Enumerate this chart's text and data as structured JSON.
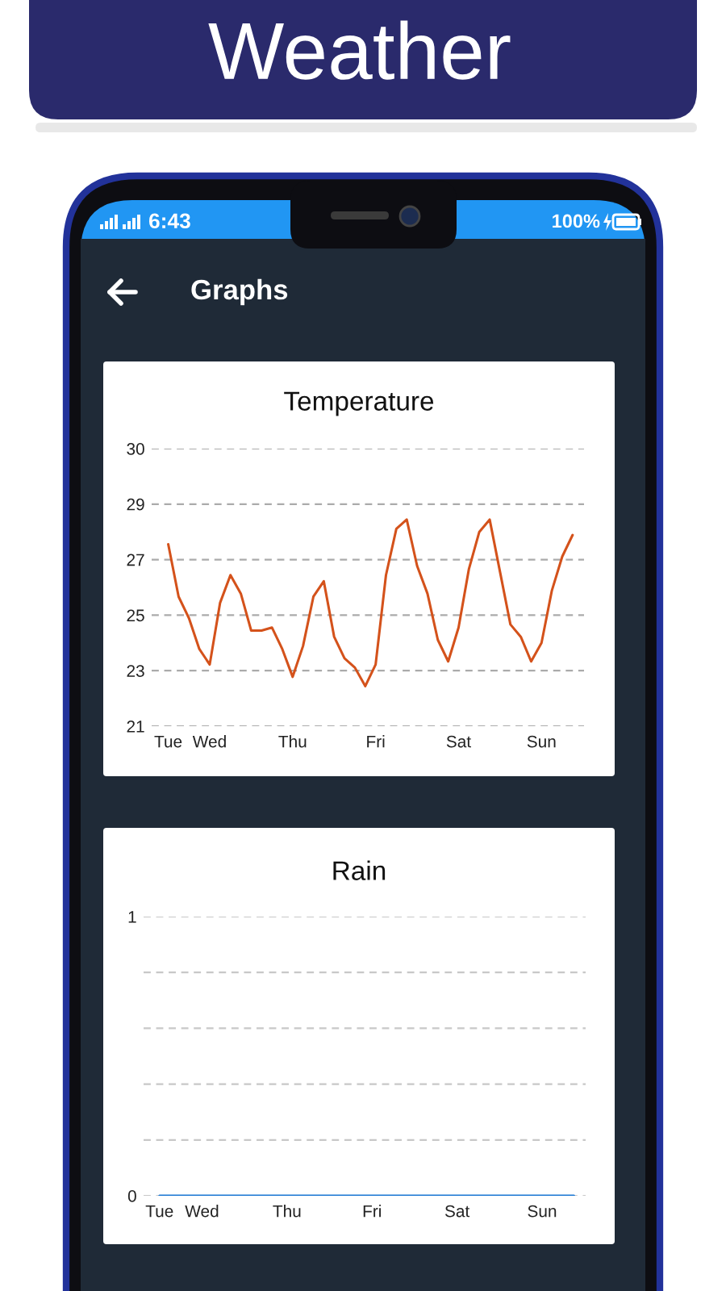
{
  "chart_data": [
    {
      "type": "line",
      "title": "Temperature",
      "annotations": [
        "Weather",
        "Graphs",
        "6:43",
        "100%"
      ],
      "categories": [
        "Tue",
        null,
        null,
        null,
        "Wed",
        null,
        null,
        null,
        null,
        null,
        null,
        null,
        "Thu",
        null,
        null,
        null,
        null,
        null,
        null,
        null,
        "Fri",
        null,
        null,
        null,
        null,
        null,
        null,
        null,
        "Sat",
        null,
        null,
        null,
        null,
        null,
        null,
        null,
        "Sun",
        null,
        null,
        null
      ],
      "series": [
        {
          "color": "#d4521b",
          "values": [
            27.3,
            25.6,
            24.9,
            23.9,
            23.4,
            25.4,
            26.3,
            25.7,
            24.5,
            24.5,
            24.6,
            23.9,
            23.0,
            24.0,
            25.6,
            26.1,
            24.3,
            23.6,
            23.3,
            22.7,
            23.4,
            26.3,
            27.8,
            28.1,
            26.6,
            25.7,
            24.2,
            23.5,
            24.6,
            26.5,
            27.7,
            28.1,
            26.4,
            24.7,
            24.3,
            23.5,
            24.1,
            25.8,
            26.9,
            27.6
          ]
        }
      ],
      "ylim": [
        21.4,
        30.4
      ],
      "yticks": [
        {
          "value": 21.4,
          "label": "21"
        },
        {
          "value": 23.2,
          "label": "23"
        },
        25,
        {
          "value": 26.8,
          "label": "27"
        },
        {
          "value": 28.6,
          "label": "29"
        },
        {
          "value": 30.4,
          "label": "30"
        }
      ],
      "grid": "y"
    },
    {
      "type": "line",
      "title": "Rain",
      "categories": [
        "Tue",
        null,
        null,
        null,
        "Wed",
        null,
        null,
        null,
        null,
        null,
        null,
        null,
        "Thu",
        null,
        null,
        null,
        null,
        null,
        null,
        null,
        "Fri",
        null,
        null,
        null,
        null,
        null,
        null,
        null,
        "Sat",
        null,
        null,
        null,
        null,
        null,
        null,
        null,
        "Sun",
        null,
        null,
        null
      ],
      "series": [
        {
          "color": "#1976d2",
          "values": [
            0,
            0,
            0,
            0,
            0,
            0,
            0,
            0,
            0,
            0,
            0,
            0,
            0,
            0,
            0,
            0,
            0,
            0,
            0,
            0,
            0,
            0,
            0,
            0,
            0,
            0,
            0,
            0,
            0,
            0,
            0,
            0,
            0,
            0,
            0,
            0,
            0,
            0,
            0,
            0
          ]
        }
      ],
      "ylim": [
        0,
        1
      ],
      "yticks": [
        0,
        {
          "value": 0.2,
          "label": null
        },
        {
          "value": 0.4,
          "label": null
        },
        {
          "value": 0.6,
          "label": null
        },
        {
          "value": 0.8,
          "label": null
        },
        1
      ],
      "grid": "y"
    }
  ]
}
